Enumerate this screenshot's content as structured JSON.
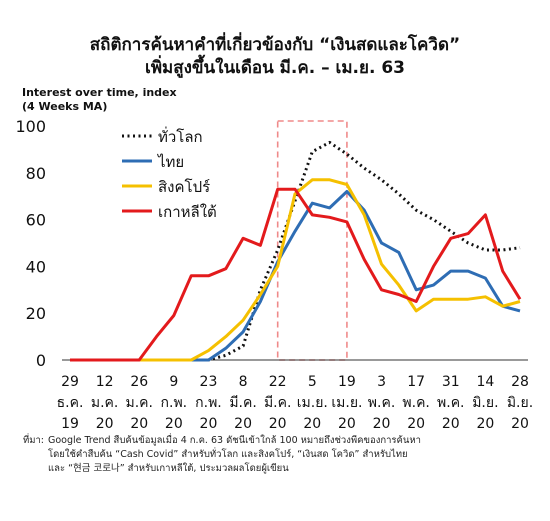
{
  "header": {
    "title_line1": "สถิติการค้นหาคำที่เกี่ยวข้องกับ “เงินสดและโควิด”",
    "title_line2": "เพิ่มสูงขึ้นในเดือน มี.ค. – เม.ย. 63"
  },
  "chart_data": {
    "type": "line",
    "ylabel_line1": "Interest over time, index",
    "ylabel_line2": "(4 Weeks MA)",
    "ylim": [
      0,
      100
    ],
    "yticks": [
      0,
      20,
      40,
      60,
      80,
      100
    ],
    "x_tick_labels": [
      [
        "29",
        "ธ.ค.",
        "19"
      ],
      [
        "12",
        "ม.ค.",
        "20"
      ],
      [
        "26",
        "ม.ค.",
        "20"
      ],
      [
        "9",
        "ก.พ.",
        "20"
      ],
      [
        "23",
        "ก.พ.",
        "20"
      ],
      [
        "8",
        "มี.ค.",
        "20"
      ],
      [
        "22",
        "มี.ค.",
        "20"
      ],
      [
        "5",
        "เม.ย.",
        "20"
      ],
      [
        "19",
        "เม.ย.",
        "20"
      ],
      [
        "3",
        "พ.ค.",
        "20"
      ],
      [
        "17",
        "พ.ค.",
        "20"
      ],
      [
        "31",
        "พ.ค.",
        "20"
      ],
      [
        "14",
        "มิ.ย.",
        "20"
      ],
      [
        "28",
        "มิ.ย.",
        "20"
      ]
    ],
    "x": [
      "2019-12-29",
      "2020-01-05",
      "2020-01-12",
      "2020-01-19",
      "2020-01-26",
      "2020-02-02",
      "2020-02-09",
      "2020-02-16",
      "2020-02-23",
      "2020-03-01",
      "2020-03-08",
      "2020-03-15",
      "2020-03-22",
      "2020-03-29",
      "2020-04-05",
      "2020-04-12",
      "2020-04-19",
      "2020-04-26",
      "2020-05-03",
      "2020-05-10",
      "2020-05-17",
      "2020-05-24",
      "2020-05-31",
      "2020-06-07",
      "2020-06-14",
      "2020-06-21",
      "2020-06-28"
    ],
    "highlight_range": [
      "2020-03-22",
      "2020-04-19"
    ],
    "series": [
      {
        "name": "ทั่วโลก",
        "color": "#111111",
        "style": "dotted",
        "values": [
          0,
          0,
          0,
          0,
          0,
          0,
          0,
          0,
          0,
          2,
          6,
          30,
          47,
          68,
          89,
          93,
          88,
          82,
          77,
          71,
          64,
          60,
          55,
          50,
          47,
          47,
          48
        ]
      },
      {
        "name": "ไทย",
        "color": "#2e6db4",
        "style": "solid",
        "values": [
          0,
          0,
          0,
          0,
          0,
          0,
          0,
          0,
          0,
          5,
          12,
          25,
          42,
          55,
          67,
          65,
          72,
          64,
          50,
          46,
          30,
          32,
          38,
          38,
          35,
          23,
          21
        ]
      },
      {
        "name": "สิงคโปร์",
        "color": "#f5c000",
        "style": "solid",
        "values": [
          0,
          0,
          0,
          0,
          0,
          0,
          0,
          0,
          4,
          10,
          17,
          28,
          40,
          71,
          77,
          77,
          75,
          62,
          41,
          32,
          21,
          26,
          26,
          26,
          27,
          23,
          25
        ]
      },
      {
        "name": "เกาหลีใต้",
        "color": "#e31a1c",
        "style": "solid",
        "values": [
          0,
          0,
          0,
          0,
          0,
          10,
          19,
          36,
          36,
          39,
          52,
          49,
          73,
          73,
          62,
          61,
          59,
          43,
          30,
          28,
          25,
          40,
          52,
          54,
          62,
          38,
          26
        ]
      }
    ]
  },
  "source": {
    "label": "ที่มา:",
    "line1": "Google Trend สืบค้นข้อมูลเมื่อ 4 ก.ค. 63 ดัชนีเข้าใกล้ 100 หมายถึงช่วงพีคของการค้นหา",
    "line2": "โดยใช้คำสืบค้น “Cash Covid” สำหรับทั่วโลก และสิงคโปร์, “เงินสด โควิด” สำหรับไทย",
    "line3": "และ “현금 코로나” สำหรับเกาหลีใต้, ประมวลผลโดยผู้เขียน"
  }
}
